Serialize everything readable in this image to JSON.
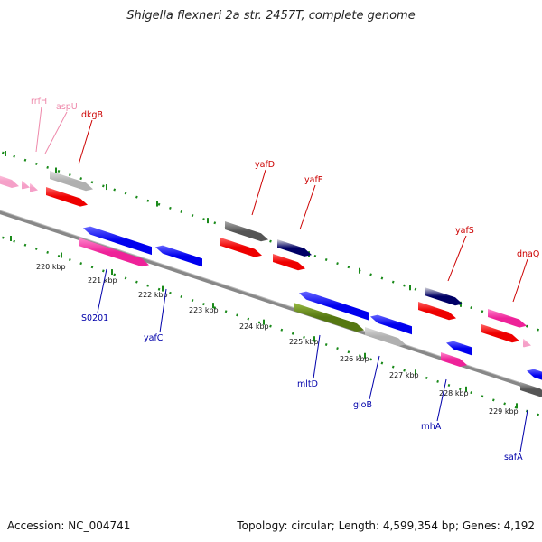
{
  "title": "Shigella flexneri 2a str. 2457T, complete genome",
  "footer": {
    "accession": "Accession: NC_004741",
    "summary": "Topology: circular; Length: 4,599,354 bp; Genes: 4,192"
  },
  "colors": {
    "backbone": "#888888",
    "dotted_track": "#1a8a1a",
    "forward_label": "#cc0000",
    "reverse_label": "#0000aa",
    "rna_label": "#ee88aa"
  },
  "scale_labels": [
    "220 kbp",
    "221 kbp",
    "222 kbp",
    "223 kbp",
    "224 kbp",
    "225 kbp",
    "226 kbp",
    "227 kbp",
    "228 kbp",
    "229 kbp"
  ],
  "gene_labels": {
    "forward": [
      "rrfH",
      "aspU",
      "dkgB",
      "yafD",
      "yafE",
      "yafS",
      "dnaQ"
    ],
    "reverse": [
      "S0201",
      "yafC",
      "mltD",
      "gloB",
      "rnhA",
      "safA"
    ]
  }
}
